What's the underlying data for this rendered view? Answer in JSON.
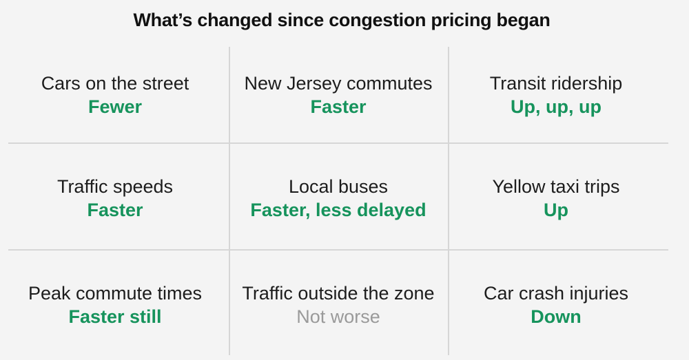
{
  "title": "What’s changed since congestion pricing began",
  "colors": {
    "positive": "#16935c",
    "neutral": "#9a9a9a"
  },
  "cells": [
    {
      "label": "Cars on the street",
      "value": "Fewer",
      "status": "positive"
    },
    {
      "label": "New Jersey commutes",
      "value": "Faster",
      "status": "positive"
    },
    {
      "label": "Transit ridership",
      "value": "Up, up, up",
      "status": "positive"
    },
    {
      "label": "Traffic speeds",
      "value": "Faster",
      "status": "positive"
    },
    {
      "label": "Local buses",
      "value": "Faster, less delayed",
      "status": "positive"
    },
    {
      "label": "Yellow taxi trips",
      "value": "Up",
      "status": "positive"
    },
    {
      "label": "Peak commute times",
      "value": "Faster still",
      "status": "positive"
    },
    {
      "label": "Traffic outside the zone",
      "value": "Not worse",
      "status": "neutral"
    },
    {
      "label": "Car crash injuries",
      "value": "Down",
      "status": "positive"
    }
  ]
}
